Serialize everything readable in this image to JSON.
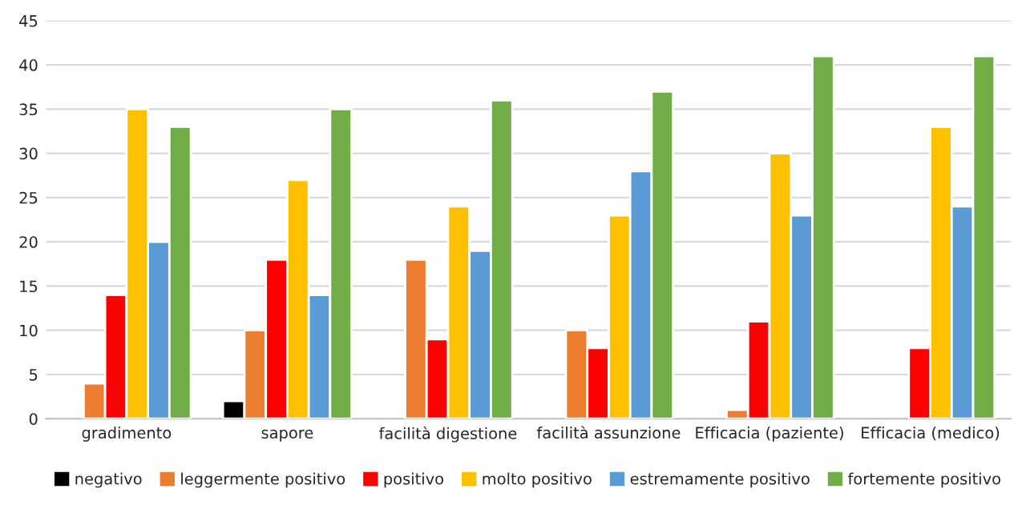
{
  "chart_data": {
    "type": "bar",
    "categories": [
      "gradimento",
      "sapore",
      "facilità digestione",
      "facilità assunzione",
      "Efficacia (paziente)",
      "Efficacia (medico)"
    ],
    "series": [
      {
        "name": "negativo",
        "color": "#000000",
        "values": [
          null,
          2,
          null,
          null,
          null,
          null
        ]
      },
      {
        "name": "leggermente positivo",
        "color": "#ed7d31",
        "values": [
          4,
          10,
          18,
          10,
          1,
          null
        ]
      },
      {
        "name": "positivo",
        "color": "#ff0000",
        "values": [
          14,
          18,
          9,
          8,
          11,
          8
        ]
      },
      {
        "name": "molto positivo",
        "color": "#ffc000",
        "values": [
          35,
          27,
          24,
          23,
          30,
          33
        ]
      },
      {
        "name": "estremamente positivo",
        "color": "#5b9bd5",
        "values": [
          20,
          14,
          19,
          28,
          23,
          24
        ]
      },
      {
        "name": "fortemente positivo",
        "color": "#70ad47",
        "values": [
          33,
          35,
          36,
          37,
          41,
          41
        ]
      }
    ],
    "ylim": [
      0,
      45
    ],
    "yticks": [
      0,
      5,
      10,
      15,
      20,
      25,
      30,
      35,
      40,
      45
    ],
    "grid": "y",
    "legend": "bottom"
  }
}
